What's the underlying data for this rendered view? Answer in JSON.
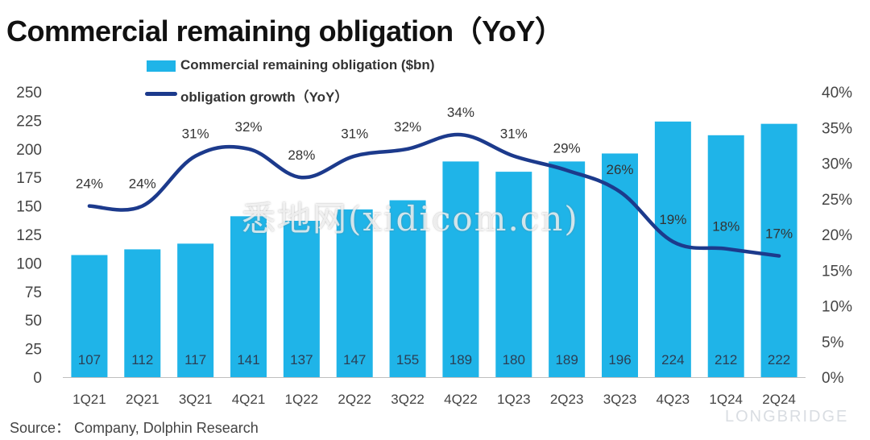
{
  "title": "Commercial remaining obligation（YoY）",
  "source": "Source：  Company, Dolphin Research",
  "watermark": "悉地网(xidicom.cn)",
  "brand": "LONGBRIDGE",
  "colors": {
    "bar": "#1fb4e8",
    "line": "#1c3a8c"
  },
  "chart_data": {
    "type": "bar",
    "categories": [
      "1Q21",
      "2Q21",
      "3Q21",
      "4Q21",
      "1Q22",
      "2Q22",
      "3Q22",
      "4Q22",
      "1Q23",
      "2Q23",
      "3Q23",
      "4Q23",
      "1Q24",
      "2Q24"
    ],
    "series": [
      {
        "name": "Commercial remaining obligation ($bn)",
        "type": "bar",
        "axis": "left",
        "values": [
          107,
          112,
          117,
          141,
          137,
          147,
          155,
          189,
          180,
          189,
          196,
          224,
          212,
          222
        ]
      },
      {
        "name": "obligation growth（YoY）",
        "type": "line",
        "axis": "right",
        "values": [
          24,
          24,
          31,
          32,
          28,
          31,
          32,
          34,
          31,
          29,
          26,
          19,
          18,
          17
        ],
        "point_labels": [
          "24%",
          "24%",
          "31%",
          "32%",
          "28%",
          "31%",
          "32%",
          "34%",
          "31%",
          "29%",
          "26%",
          "19%",
          "18%",
          "17%"
        ]
      }
    ],
    "y_left": {
      "min": 0,
      "max": 250,
      "step": 25,
      "ticks": [
        "0",
        "25",
        "50",
        "75",
        "100",
        "125",
        "150",
        "175",
        "200",
        "225",
        "250"
      ]
    },
    "y_right": {
      "min": 0,
      "max": 40,
      "step": 5,
      "ticks": [
        "0%",
        "5%",
        "10%",
        "15%",
        "20%",
        "25%",
        "30%",
        "35%",
        "40%"
      ]
    },
    "legend_position": "top-left",
    "grid": false
  }
}
